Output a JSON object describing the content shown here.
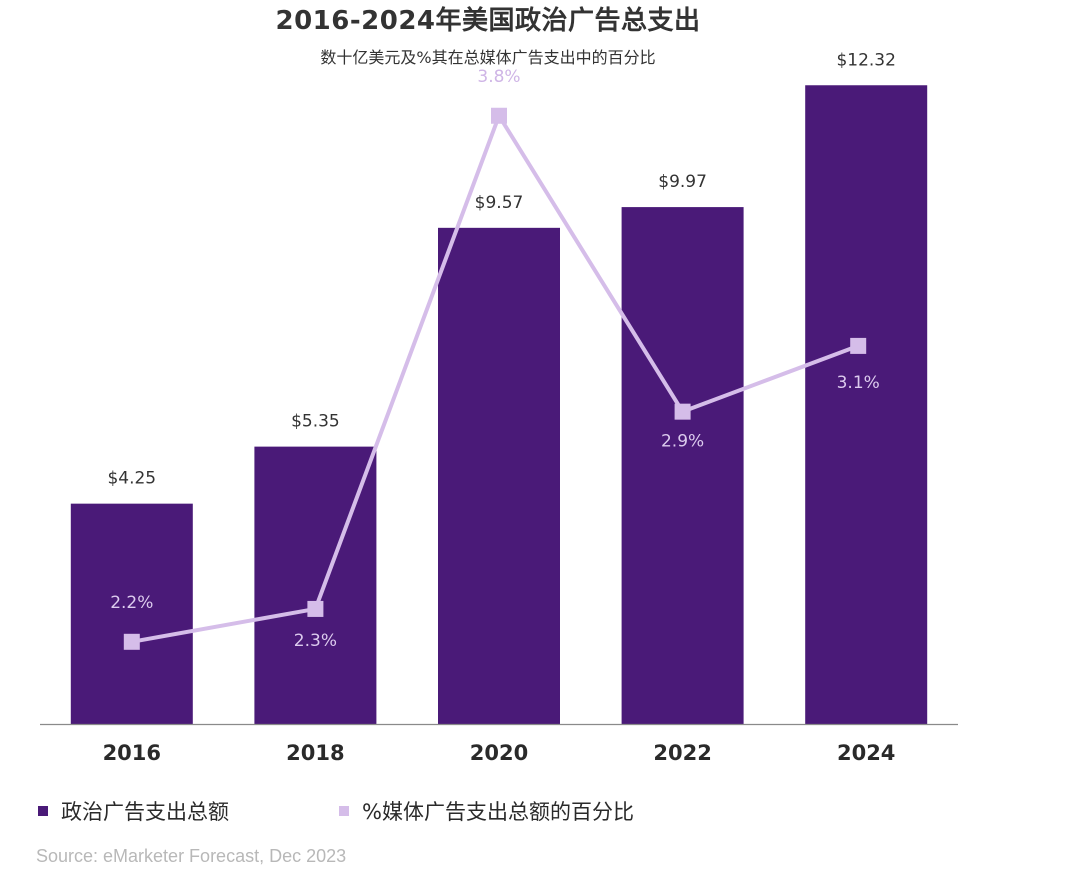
{
  "chart_data": {
    "type": "bar",
    "title": "2016-2024年美国政治广告总支出",
    "subtitle": "数十亿美元及%其在总媒体广告支出中的百分比",
    "categories": [
      "2016",
      "2018",
      "2020",
      "2022",
      "2024"
    ],
    "series": [
      {
        "name": "政治广告支出总额",
        "type": "bar",
        "values": [
          4.25,
          5.35,
          9.57,
          9.97,
          12.32
        ],
        "labels": [
          "$4.25",
          "$5.35",
          "$9.57",
          "$9.97",
          "$12.32"
        ],
        "color": "#4a1a78"
      },
      {
        "name": "%媒体广告支出总额的百分比",
        "type": "line",
        "values": [
          2.2,
          2.3,
          3.8,
          2.9,
          3.1
        ],
        "labels": [
          "2.2%",
          "2.3%",
          "3.8%",
          "2.9%",
          "3.1%"
        ],
        "color": "#d5bde9"
      }
    ],
    "ylim": [
      0,
      13
    ],
    "y2lim": [
      1.95,
      4.0
    ],
    "grid": false,
    "legend_position": "bottom-left"
  },
  "legend": {
    "bars_label": "政治广告支出总额",
    "line_label": "%媒体广告支出总额的百分比"
  },
  "source": "Source: eMarketer Forecast, Dec 2023"
}
